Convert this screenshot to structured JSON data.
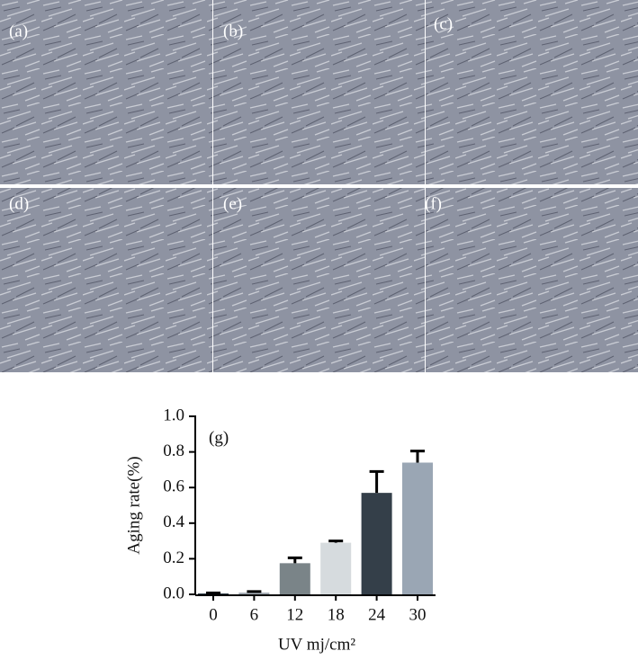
{
  "panels": [
    "(a)",
    "(b)",
    "(c)",
    "(d)",
    "(e)",
    "(f)"
  ],
  "chart_data": {
    "type": "bar",
    "annotation": "(g)",
    "x_label": "UV mj/cm²",
    "y_label": "Aging rate(%)",
    "categories": [
      "0",
      "6",
      "12",
      "18",
      "24",
      "30"
    ],
    "values": [
      0.005,
      0.01,
      0.175,
      0.29,
      0.57,
      0.74
    ],
    "errors": [
      0.003,
      0.006,
      0.03,
      0.01,
      0.12,
      0.065
    ],
    "colors": [
      "#2c3a44",
      "#a4acb4",
      "#7a8488",
      "#d6dbde",
      "#343f49",
      "#9aa6b4"
    ],
    "ylim": [
      0,
      1
    ],
    "yticks": [
      {
        "value": 0,
        "label": "0.0"
      },
      0.2,
      0.4,
      0.6,
      0.8,
      {
        "value": 1,
        "label": "1.0"
      }
    ]
  }
}
